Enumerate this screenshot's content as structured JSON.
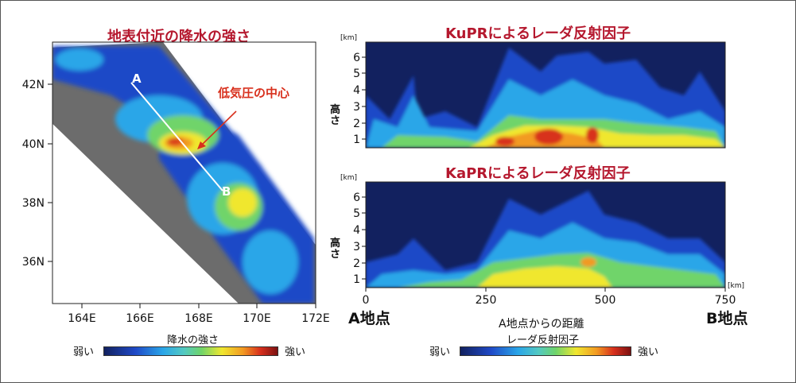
{
  "map": {
    "title": "地表付近の降水の強さ",
    "lat_ticks": [
      "42N",
      "40N",
      "38N",
      "36N"
    ],
    "lon_ticks": [
      "164E",
      "166E",
      "168E",
      "170E",
      "172E"
    ],
    "point_a": "A",
    "point_b": "B",
    "annotation": "低気圧の中心",
    "colorbar": {
      "label": "降水の強さ",
      "low": "弱い",
      "high": "強い"
    }
  },
  "chart_data": [
    {
      "type": "heatmap",
      "title": "KuPRによるレーダ反射因子",
      "ylabel": "高さ",
      "yunit": "[km]",
      "ylim": [
        0,
        6.5
      ],
      "y_ticks": [
        "1",
        "2",
        "3",
        "4",
        "5",
        "6"
      ],
      "xlim": [
        0,
        750
      ]
    },
    {
      "type": "heatmap",
      "title": "KaPRによるレーダ反射因子",
      "ylabel": "高さ",
      "yunit": "[km]",
      "ylim": [
        0,
        6.5
      ],
      "y_ticks": [
        "1",
        "2",
        "3",
        "4",
        "5",
        "6"
      ],
      "xlim": [
        0,
        750
      ],
      "xunit": "[km]",
      "x_ticks": [
        "0",
        "250",
        "500",
        "750"
      ],
      "xlabel": "A地点からの距離",
      "x_start_label": "A地点",
      "x_end_label": "B地点"
    }
  ],
  "profile_colorbar": {
    "label": "レーダ反射因子",
    "low": "弱い",
    "high": "強い"
  }
}
